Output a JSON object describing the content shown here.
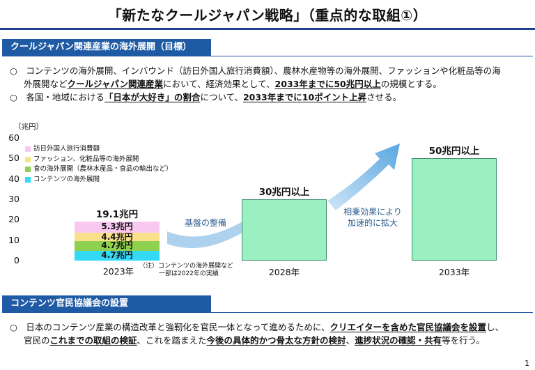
{
  "title": "「新たなクールジャパン戦略」（重点的な取組①）",
  "section1": {
    "heading": "クールジャパン関連産業の海外展開（目標）",
    "bullet1_line1": "○　コンテンツの海外展開、インバウンド（訪日外国人旅行消費額）、農林水産物等の海外展開、ファッションや化粧品等の海",
    "bullet1_line2_pre": "外展開など",
    "bullet1_line2_b1": "クールジャパン関連産業",
    "bullet1_line2_mid": "において、経済効果として、",
    "bullet1_line2_b2": "2033年までに50兆円以上",
    "bullet1_line2_post": "の規模とする。",
    "bullet2_pre": "○　各国・地域における",
    "bullet2_b1": "「日本が大好き」の割合",
    "bullet2_mid": "について、",
    "bullet2_b2": "2033年までに10ポイント上昇",
    "bullet2_post": "させる。"
  },
  "chart_data": {
    "type": "bar",
    "ylabel": "（兆円）",
    "ylim": [
      0,
      60
    ],
    "yticks": [
      "0",
      "10",
      "20",
      "30",
      "40",
      "50",
      "60"
    ],
    "categories": [
      "2023年",
      "2028年",
      "2033年"
    ],
    "legend": [
      {
        "name": "訪日外国人旅行消費額",
        "color": "#f9c8f0"
      },
      {
        "name": "ファッション、化粧品等の海外展開",
        "color": "#f9e08a"
      },
      {
        "name": "食の海外展開（農林水産品・食品の輸出など）",
        "color": "#8fd14f"
      },
      {
        "name": "コンテンツの海外展開",
        "color": "#33d9f5"
      }
    ],
    "stack_2023": [
      {
        "label": "4.7兆円",
        "value": 4.7,
        "color": "#33d9f5"
      },
      {
        "label": "4.7兆円",
        "value": 4.7,
        "color": "#8fd14f"
      },
      {
        "label": "4.4兆円",
        "value": 4.4,
        "color": "#f9e08a"
      },
      {
        "label": "5.3兆円",
        "value": 5.3,
        "color": "#f9c8f0"
      }
    ],
    "total_2023": "19.1兆円",
    "target_2028": {
      "value": 30,
      "label": "30兆円以上"
    },
    "target_2033": {
      "value": 50,
      "label": "50兆円以上"
    },
    "note_2023_line1": "（注）コンテンツの海外展開など",
    "note_2023_line2": "一部は2022年の実績",
    "annotation_base": "基盤の整備",
    "annotation_synergy_line1": "相乗効果により",
    "annotation_synergy_line2": "加速的に拡大"
  },
  "section2": {
    "heading": "コンテンツ官民協議会の設置",
    "line1_pre": "○　日本のコンテンツ産業の構造改革と強靭化を官民一体となって進めるために、",
    "line1_b1": "クリエイターを含めた官民協議会を設置",
    "line1_post": "し、",
    "line2_pre": "官民の",
    "line2_b1": "これまでの取組の検証",
    "line2_mid1": "、これを踏まえた",
    "line2_b2": "今後の具体的かつ骨太な方針の検討",
    "line2_mid2": "、",
    "line2_b3": "進捗状況の確認・共有",
    "line2_post": "等を行う。"
  },
  "page_number": "1"
}
